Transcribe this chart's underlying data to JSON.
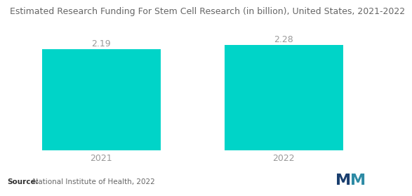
{
  "title": "Estimated Research Funding For Stem Cell Research (in billion), United States, 2021-2022",
  "categories": [
    "2021",
    "2022"
  ],
  "values": [
    2.19,
    2.28
  ],
  "bar_color": "#00D4C8",
  "bar_width": 0.65,
  "ylim": [
    0,
    2.75
  ],
  "title_fontsize": 9.0,
  "label_fontsize": 9,
  "value_fontsize": 9,
  "source_bold": "Source:",
  "source_normal": "  National Institute of Health, 2022",
  "source_fontsize": 7.5,
  "background_color": "#ffffff",
  "tick_label_color": "#999999",
  "value_label_color": "#999999",
  "title_color": "#666666"
}
